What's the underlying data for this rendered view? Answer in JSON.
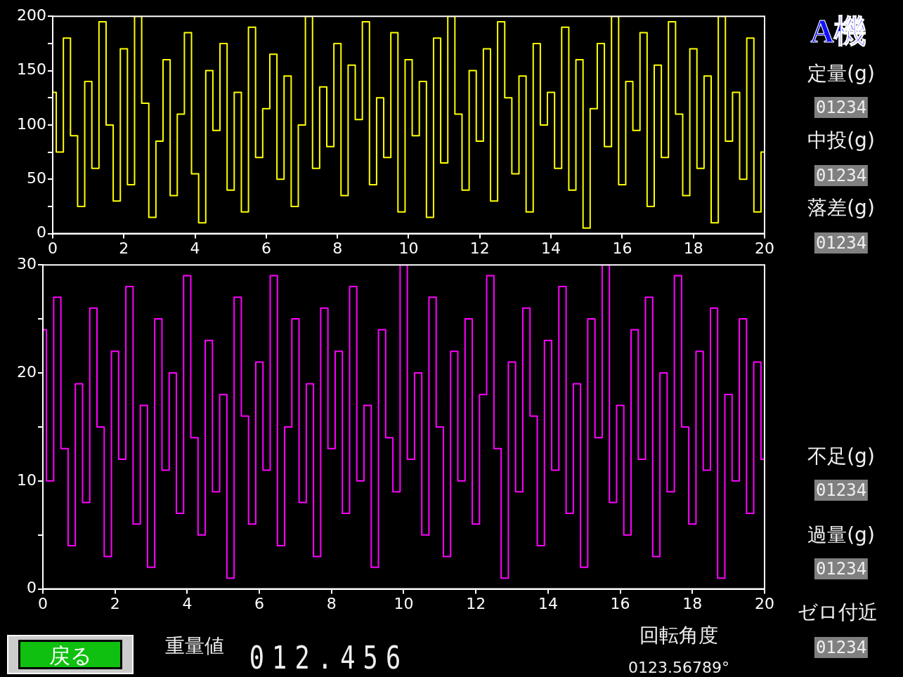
{
  "chart_data": [
    {
      "type": "step",
      "x": [
        0,
        0.2,
        0.4,
        0.6,
        0.8,
        1,
        1.2,
        1.4,
        1.6,
        1.8,
        2,
        2.2,
        2.4,
        2.6,
        2.8,
        3,
        3.2,
        3.4,
        3.6,
        3.8,
        4,
        4.2,
        4.4,
        4.6,
        4.8,
        5,
        5.2,
        5.4,
        5.6,
        5.8,
        6,
        6.2,
        6.4,
        6.6,
        6.8,
        7,
        7.2,
        7.4,
        7.6,
        7.8,
        8,
        8.2,
        8.4,
        8.6,
        8.8,
        9,
        9.2,
        9.4,
        9.6,
        9.8,
        10,
        10.2,
        10.4,
        10.6,
        10.8,
        11,
        11.2,
        11.4,
        11.6,
        11.8,
        12,
        12.2,
        12.4,
        12.6,
        12.8,
        13,
        13.2,
        13.4,
        13.6,
        13.8,
        14,
        14.2,
        14.4,
        14.6,
        14.8,
        15,
        15.2,
        15.4,
        15.6,
        15.8,
        16,
        16.2,
        16.4,
        16.6,
        16.8,
        17,
        17.2,
        17.4,
        17.6,
        17.8,
        18,
        18.2,
        18.4,
        18.6,
        18.8,
        19,
        19.2,
        19.4,
        19.6,
        19.8,
        20
      ],
      "series": [
        {
          "color": "#ffff00",
          "values": [
            130,
            75,
            180,
            90,
            25,
            140,
            60,
            195,
            100,
            30,
            170,
            45,
            200,
            120,
            15,
            85,
            160,
            35,
            110,
            185,
            55,
            10,
            150,
            95,
            175,
            40,
            130,
            20,
            190,
            70,
            115,
            165,
            50,
            145,
            25,
            100,
            200,
            60,
            135,
            80,
            175,
            35,
            155,
            105,
            195,
            45,
            125,
            70,
            185,
            20,
            160,
            90,
            140,
            15,
            180,
            65,
            200,
            110,
            40,
            150,
            85,
            170,
            30,
            195,
            125,
            55,
            145,
            20,
            175,
            100,
            130,
            60,
            190,
            40,
            160,
            5,
            115,
            175,
            80,
            200,
            45,
            140,
            95,
            185,
            25,
            155,
            70,
            195,
            110,
            35,
            170,
            60,
            145,
            10,
            200,
            85,
            130,
            50,
            180,
            20,
            75
          ]
        }
      ],
      "xlim": [
        0,
        20
      ],
      "xticks": [
        0,
        2,
        4,
        6,
        8,
        10,
        12,
        14,
        16,
        18,
        20
      ],
      "ylim": [
        0,
        200
      ],
      "yticks": [
        0,
        {
          "value": 25,
          "label": null
        },
        50,
        {
          "value": 75,
          "label": null
        },
        100,
        {
          "value": 125,
          "label": null
        },
        150,
        {
          "value": 175,
          "label": null
        },
        200
      ],
      "marker": "none"
    },
    {
      "type": "step",
      "x": [
        0,
        0.2,
        0.4,
        0.6,
        0.8,
        1,
        1.2,
        1.4,
        1.6,
        1.8,
        2,
        2.2,
        2.4,
        2.6,
        2.8,
        3,
        3.2,
        3.4,
        3.6,
        3.8,
        4,
        4.2,
        4.4,
        4.6,
        4.8,
        5,
        5.2,
        5.4,
        5.6,
        5.8,
        6,
        6.2,
        6.4,
        6.6,
        6.8,
        7,
        7.2,
        7.4,
        7.6,
        7.8,
        8,
        8.2,
        8.4,
        8.6,
        8.8,
        9,
        9.2,
        9.4,
        9.6,
        9.8,
        10,
        10.2,
        10.4,
        10.6,
        10.8,
        11,
        11.2,
        11.4,
        11.6,
        11.8,
        12,
        12.2,
        12.4,
        12.6,
        12.8,
        13,
        13.2,
        13.4,
        13.6,
        13.8,
        14,
        14.2,
        14.4,
        14.6,
        14.8,
        15,
        15.2,
        15.4,
        15.6,
        15.8,
        16,
        16.2,
        16.4,
        16.6,
        16.8,
        17,
        17.2,
        17.4,
        17.6,
        17.8,
        18,
        18.2,
        18.4,
        18.6,
        18.8,
        19,
        19.2,
        19.4,
        19.6,
        19.8,
        20
      ],
      "series": [
        {
          "color": "#ff00ff",
          "values": [
            24,
            10,
            27,
            13,
            4,
            19,
            8,
            26,
            15,
            3,
            22,
            12,
            28,
            6,
            17,
            2,
            25,
            11,
            20,
            7,
            29,
            14,
            5,
            23,
            9,
            18,
            1,
            27,
            16,
            6,
            21,
            11,
            29,
            4,
            15,
            25,
            8,
            19,
            3,
            26,
            13,
            22,
            7,
            28,
            10,
            17,
            2,
            24,
            14,
            9,
            30,
            12,
            20,
            5,
            27,
            15,
            3,
            22,
            10,
            25,
            6,
            18,
            29,
            13,
            1,
            21,
            9,
            26,
            16,
            4,
            23,
            11,
            28,
            7,
            19,
            2,
            25,
            14,
            30,
            8,
            17,
            5,
            24,
            12,
            27,
            3,
            20,
            9,
            29,
            15,
            6,
            22,
            11,
            26,
            1,
            18,
            10,
            25,
            7,
            21,
            12
          ]
        }
      ],
      "xlim": [
        0,
        20
      ],
      "xticks": [
        0,
        2,
        4,
        6,
        8,
        10,
        12,
        14,
        16,
        18,
        20
      ],
      "ylim": [
        0,
        30
      ],
      "yticks": [
        0,
        {
          "value": 5,
          "label": null
        },
        10,
        {
          "value": 15,
          "label": null
        },
        20,
        {
          "value": 25,
          "label": null
        },
        30
      ],
      "marker": "none"
    },
    {
      "type": "other",
      "annotations": [
        "A機",
        "定量(g)",
        "01234",
        "中投(g)",
        "01234",
        "落差(g)",
        "01234",
        "不足(g)",
        "01234",
        "過量(g)",
        "01234",
        "ゼロ付近",
        "01234"
      ]
    },
    {
      "type": "other",
      "annotations": [
        "戻る",
        "重量値",
        "012.456",
        "回転角度",
        "0123.56789°"
      ]
    }
  ]
}
